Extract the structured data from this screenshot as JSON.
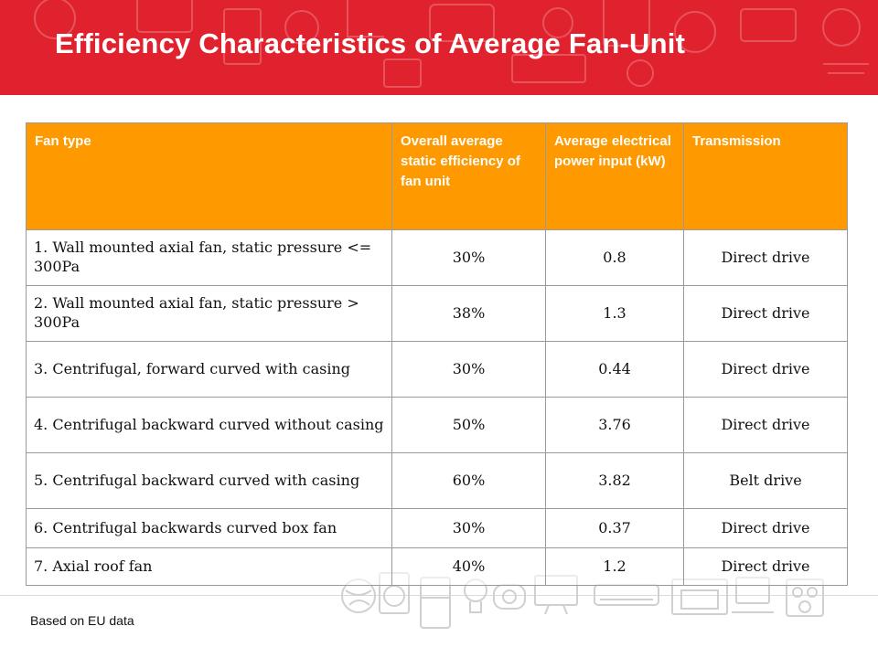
{
  "slide": {
    "title": "Efficiency Characteristics of Average Fan-Unit",
    "footnote": "Based on EU data"
  },
  "colors": {
    "banner": "#e0222e",
    "header": "#ff9900",
    "header_text": "#ffffff"
  },
  "table": {
    "headers": [
      "Fan type",
      "Overall average static efficiency of fan unit",
      "Average electrical power input (kW)",
      "Transmission"
    ],
    "rows": [
      [
        "1. Wall mounted axial fan, static pressure <= 300Pa",
        "30%",
        "0.8",
        "Direct drive"
      ],
      [
        "2. Wall mounted axial fan, static pressure > 300Pa",
        "38%",
        "1.3",
        "Direct drive"
      ],
      [
        "3. Centrifugal, forward curved with casing",
        "30%",
        "0.44",
        "Direct drive"
      ],
      [
        "4. Centrifugal backward curved without casing",
        "50%",
        "3.76",
        "Direct drive"
      ],
      [
        "5. Centrifugal backward curved with casing",
        "60%",
        "3.82",
        "Belt drive"
      ],
      [
        "6. Centrifugal backwards curved box fan",
        "30%",
        "0.37",
        "Direct drive"
      ],
      [
        "7. Axial roof fan",
        "40%",
        "1.2",
        "Direct drive"
      ]
    ]
  },
  "decoration": {
    "banner_icons": [
      "appliance-outline-icons"
    ],
    "bottom_icons": [
      "globe-icon",
      "washing-machine-icon",
      "fridge-icon",
      "light-bulb-icon",
      "motor-icon",
      "monitor-icon",
      "air-conditioner-icon",
      "fireplace-icon",
      "computer-icon",
      "stove-icon"
    ]
  }
}
